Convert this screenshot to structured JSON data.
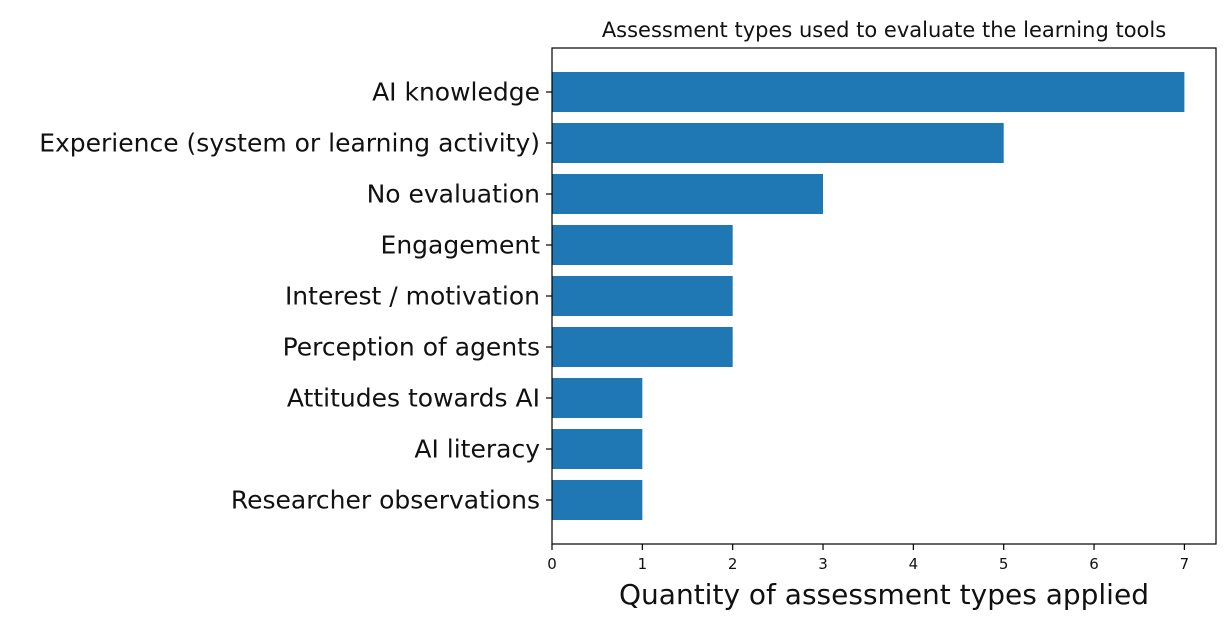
{
  "chart_data": {
    "type": "bar",
    "orientation": "horizontal",
    "title": "Assessment types used to evaluate the learning tools",
    "xlabel": "Quantity of assessment types applied",
    "ylabel": "",
    "categories": [
      "AI knowledge",
      "Experience (system or learning activity)",
      "No evaluation",
      "Engagement",
      "Interest / motivation",
      "Perception of agents",
      "Attitudes towards AI",
      "AI literacy",
      "Researcher observations"
    ],
    "values": [
      7,
      5,
      3,
      2,
      2,
      2,
      1,
      1,
      1
    ],
    "xlim": [
      0,
      7.35
    ],
    "xticks": [
      0,
      1,
      2,
      3,
      4,
      5,
      6,
      7
    ],
    "grid": false,
    "bar_color": "#1f77b4"
  }
}
